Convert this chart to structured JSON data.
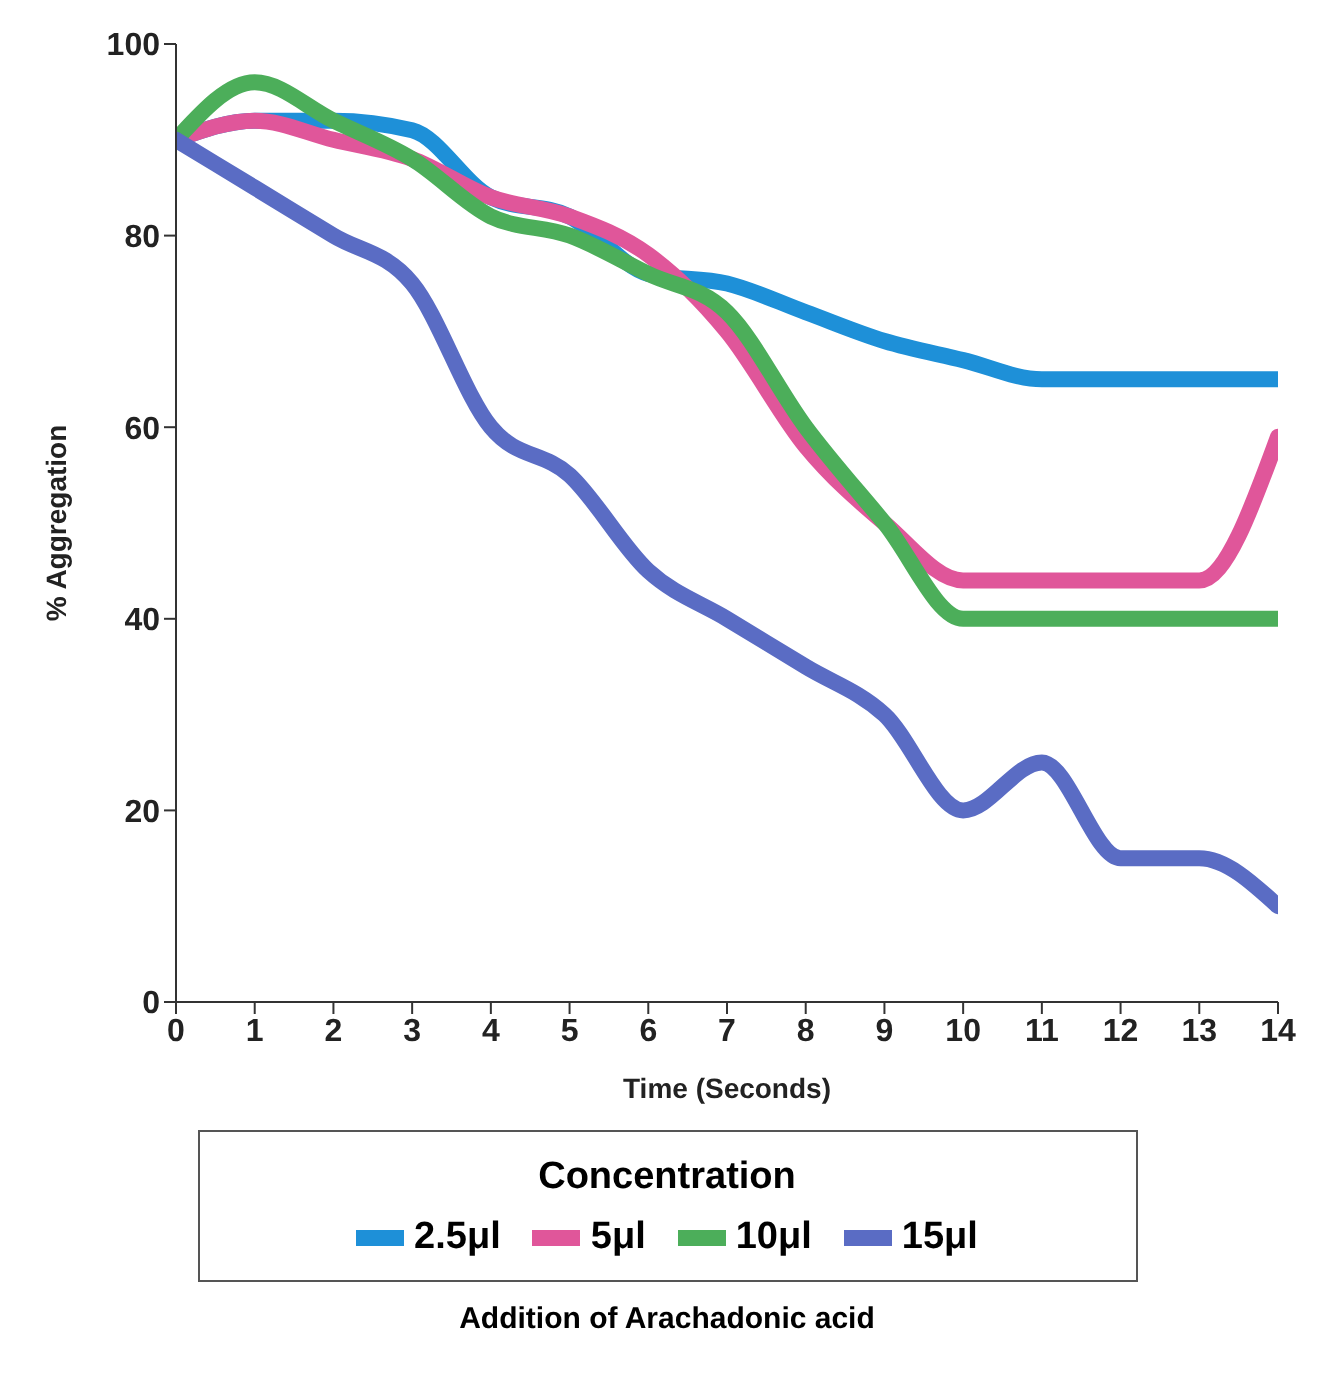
{
  "chart_data": {
    "type": "line",
    "xlabel": "Time (Seconds)",
    "ylabel": "% Aggregation",
    "legend_title": "Concentration",
    "annotations": [
      "Addition of Arachadonic acid"
    ],
    "x": [
      0,
      1,
      2,
      3,
      4,
      5,
      6,
      7,
      8,
      9,
      10,
      11,
      12,
      13,
      14
    ],
    "xlim": [
      0,
      14
    ],
    "xticks": [
      0,
      1,
      2,
      3,
      4,
      5,
      6,
      7,
      8,
      9,
      10,
      11,
      12,
      13,
      14
    ],
    "ylim": [
      0,
      100
    ],
    "yticks": [
      0,
      20,
      40,
      60,
      80,
      100
    ],
    "grid": false,
    "legend": "bottom",
    "series": [
      {
        "name": "2.5μl",
        "color": "#1e90d8",
        "values": [
          90,
          92,
          92,
          91,
          84,
          82,
          76,
          75,
          72,
          69,
          67,
          65,
          65,
          65,
          65
        ]
      },
      {
        "name": "5μl",
        "color": "#e0569a",
        "values": [
          90,
          92,
          90,
          88,
          84,
          82,
          78,
          70,
          58,
          50,
          44,
          44,
          44,
          44,
          59
        ]
      },
      {
        "name": "10μl",
        "color": "#4cae5a",
        "values": [
          90,
          96,
          92,
          88,
          82,
          80,
          76,
          72,
          60,
          50,
          40,
          40,
          40,
          40,
          40
        ]
      },
      {
        "name": "15μl",
        "color": "#5a6cc4",
        "values": [
          90,
          85,
          80,
          75,
          60,
          55,
          45,
          40,
          35,
          30,
          20,
          25,
          15,
          15,
          10
        ]
      }
    ]
  }
}
